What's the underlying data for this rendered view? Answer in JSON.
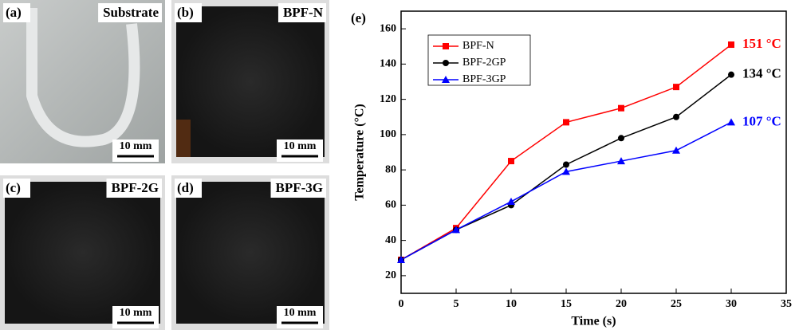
{
  "panels": [
    {
      "label": "(a)",
      "name": "Substrate",
      "scale": "10 mm"
    },
    {
      "label": "(b)",
      "name": "BPF-N",
      "scale": "10 mm"
    },
    {
      "label": "(c)",
      "name": "BPF-2G",
      "scale": "10 mm"
    },
    {
      "label": "(d)",
      "name": "BPF-3G",
      "scale": "10 mm"
    }
  ],
  "chart_data": {
    "type": "line",
    "panel_label": "(e)",
    "x_label": "Time (s)",
    "y_label": "Temperature (°C)",
    "x": [
      0,
      5,
      10,
      15,
      20,
      25,
      30
    ],
    "series": [
      {
        "name": "BPF-N",
        "color": "#ff0000",
        "marker": "square",
        "values": [
          29,
          47,
          85,
          107,
          115,
          127,
          151
        ]
      },
      {
        "name": "BPF-2GP",
        "color": "#000000",
        "marker": "circle",
        "values": [
          29,
          46,
          60,
          83,
          98,
          110,
          134
        ]
      },
      {
        "name": "BPF-3GP",
        "color": "#0000ff",
        "marker": "triangle",
        "values": [
          29,
          46,
          62,
          79,
          85,
          91,
          107
        ]
      }
    ],
    "annotations": [
      {
        "text": "151 °C",
        "color": "#ff0000"
      },
      {
        "text": "134 °C",
        "color": "#000000"
      },
      {
        "text": "107 °C",
        "color": "#0000ff"
      }
    ],
    "xlim": [
      0,
      35
    ],
    "xticks": [
      0,
      5,
      10,
      15,
      20,
      25,
      30,
      35
    ],
    "ylim": [
      10,
      170
    ],
    "yticks": [
      20,
      40,
      60,
      80,
      100,
      120,
      140,
      160
    ],
    "legend": "upper left"
  }
}
